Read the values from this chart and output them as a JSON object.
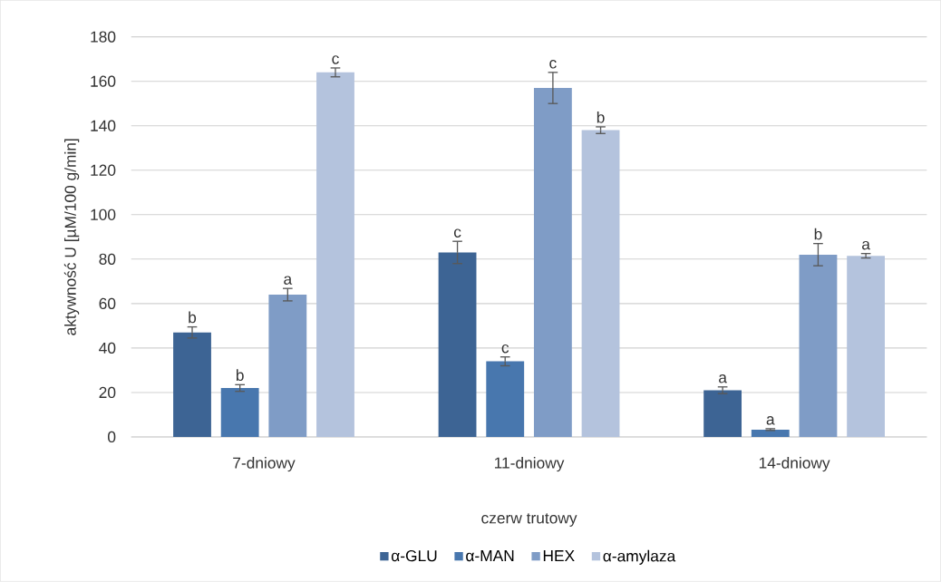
{
  "chart_data": {
    "type": "bar",
    "xlabel": "czerw trutowy",
    "ylabel": "aktywność U [µM/100 g/min]",
    "categories": [
      "7-dniowy",
      "11-dniowy",
      "14-dniowy"
    ],
    "series": [
      {
        "name": "α-GLU",
        "color": "#3d6494",
        "values": [
          47,
          83,
          21
        ],
        "errors": [
          2.5,
          5,
          1.5
        ],
        "value_labels": [
          "b",
          "c",
          "a"
        ]
      },
      {
        "name": "α-MAN",
        "color": "#4877ae",
        "values": [
          22,
          34,
          3.3
        ],
        "errors": [
          1.5,
          2,
          0.4
        ],
        "value_labels": [
          "b",
          "c",
          "a"
        ]
      },
      {
        "name": "HEX",
        "color": "#7f9cc6",
        "values": [
          64,
          157,
          82
        ],
        "errors": [
          2.8,
          7,
          5
        ],
        "value_labels": [
          "a",
          "c",
          "b"
        ]
      },
      {
        "name": "α-amylaza",
        "color": "#b4c3dd",
        "values": [
          164,
          138,
          81.5
        ],
        "errors": [
          2,
          1.5,
          1
        ],
        "value_labels": [
          "c",
          "b",
          "a"
        ]
      }
    ],
    "ylim": [
      0,
      180
    ],
    "yticks": [
      0,
      20,
      40,
      60,
      80,
      100,
      120,
      140,
      160,
      180
    ],
    "grid": "y",
    "legend": "bottom"
  }
}
